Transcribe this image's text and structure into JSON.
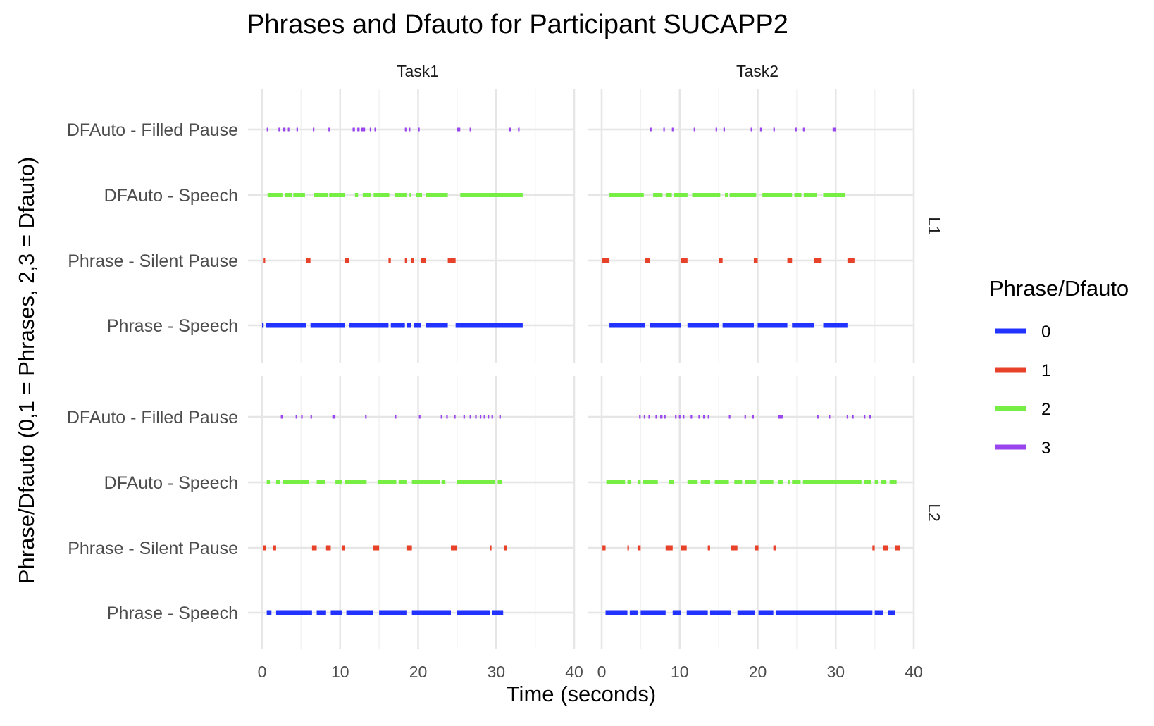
{
  "chart_data": {
    "type": "timeline",
    "title": "Phrases and Dfauto for Participant SUCAPP2",
    "xlabel": "Time (seconds)",
    "ylabel": "Phrase/Dfauto (0,1 = Phrases, 2,3 = Dfauto)",
    "xlim": [
      0,
      40
    ],
    "x_ticks": [
      "0",
      "10",
      "20",
      "30",
      "40"
    ],
    "categories": [
      "DFAuto - Filled Pause",
      "DFAuto - Speech",
      "Phrase - Silent Pause",
      "Phrase - Speech"
    ],
    "facet_cols": [
      "Task1",
      "Task2"
    ],
    "facet_rows": [
      "L1",
      "L2"
    ],
    "grid": true,
    "legend": {
      "title": "Phrase/Dfauto",
      "position": "right",
      "entries": [
        {
          "label": "0",
          "color": "#2233ff"
        },
        {
          "label": "1",
          "color": "#e8412a"
        },
        {
          "label": "2",
          "color": "#77ee44"
        },
        {
          "label": "3",
          "color": "#9944ee"
        }
      ]
    },
    "panels": [
      {
        "row": "L1",
        "col": "Task1",
        "series": [
          {
            "code": "3",
            "category": "DFAuto - Filled Pause",
            "segments": [
              [
                0.6,
                0.8
              ],
              [
                2.1,
                2.3
              ],
              [
                2.7,
                3.0
              ],
              [
                3.3,
                3.5
              ],
              [
                4.4,
                4.6
              ],
              [
                6.5,
                6.7
              ],
              [
                8.5,
                8.7
              ],
              [
                11.6,
                11.9
              ],
              [
                12.2,
                12.5
              ],
              [
                12.7,
                13.2
              ],
              [
                13.8,
                14.0
              ],
              [
                14.4,
                14.6
              ],
              [
                18.3,
                18.5
              ],
              [
                18.8,
                19.0
              ],
              [
                20.0,
                20.2
              ],
              [
                25.0,
                25.4
              ],
              [
                26.6,
                26.8
              ],
              [
                31.6,
                31.9
              ],
              [
                32.8,
                33.0
              ]
            ]
          },
          {
            "code": "2",
            "category": "DFAuto - Speech",
            "segments": [
              [
                0.7,
                2.6
              ],
              [
                2.9,
                3.8
              ],
              [
                4.0,
                5.5
              ],
              [
                6.6,
                8.4
              ],
              [
                8.6,
                10.6
              ],
              [
                11.9,
                12.3
              ],
              [
                12.9,
                14.0
              ],
              [
                14.3,
                16.3
              ],
              [
                17.0,
                18.5
              ],
              [
                18.9,
                19.1
              ],
              [
                19.7,
                20.5
              ],
              [
                21.0,
                23.8
              ],
              [
                25.4,
                33.4
              ]
            ]
          },
          {
            "code": "1",
            "category": "Phrase - Silent Pause",
            "segments": [
              [
                0.2,
                0.4
              ],
              [
                5.6,
                6.2
              ],
              [
                10.6,
                11.2
              ],
              [
                16.2,
                16.5
              ],
              [
                18.3,
                18.6
              ],
              [
                19.1,
                19.5
              ],
              [
                20.4,
                21.0
              ],
              [
                23.8,
                24.8
              ]
            ]
          },
          {
            "code": "0",
            "category": "Phrase - Speech",
            "segments": [
              [
                0.0,
                0.2
              ],
              [
                0.5,
                5.6
              ],
              [
                6.2,
                10.6
              ],
              [
                11.2,
                16.2
              ],
              [
                16.5,
                18.3
              ],
              [
                18.6,
                19.1
              ],
              [
                19.5,
                20.4
              ],
              [
                21.0,
                23.8
              ],
              [
                24.8,
                33.4
              ]
            ]
          }
        ]
      },
      {
        "row": "L1",
        "col": "Task2",
        "series": [
          {
            "code": "3",
            "category": "DFAuto - Filled Pause",
            "segments": [
              [
                6.2,
                6.4
              ],
              [
                7.9,
                8.1
              ],
              [
                9.0,
                9.2
              ],
              [
                11.8,
                12.0
              ],
              [
                14.6,
                14.8
              ],
              [
                15.6,
                15.8
              ],
              [
                19.1,
                19.3
              ],
              [
                20.3,
                20.5
              ],
              [
                22.0,
                22.2
              ],
              [
                24.8,
                25.0
              ],
              [
                25.8,
                26.0
              ],
              [
                29.6,
                30.0
              ]
            ]
          },
          {
            "code": "2",
            "category": "DFAuto - Speech",
            "segments": [
              [
                1.0,
                5.4
              ],
              [
                6.6,
                7.8
              ],
              [
                8.2,
                9.0
              ],
              [
                9.3,
                11.0
              ],
              [
                11.6,
                15.2
              ],
              [
                15.8,
                16.2
              ],
              [
                16.4,
                19.8
              ],
              [
                20.6,
                24.4
              ],
              [
                24.7,
                25.6
              ],
              [
                25.9,
                27.6
              ],
              [
                28.4,
                31.2
              ]
            ]
          },
          {
            "code": "1",
            "category": "Phrase - Silent Pause",
            "segments": [
              [
                0.0,
                1.0
              ],
              [
                5.6,
                6.2
              ],
              [
                10.2,
                11.0
              ],
              [
                15.0,
                15.5
              ],
              [
                19.5,
                20.0
              ],
              [
                23.8,
                24.4
              ],
              [
                27.2,
                28.2
              ],
              [
                31.5,
                32.4
              ]
            ]
          },
          {
            "code": "0",
            "category": "Phrase - Speech",
            "segments": [
              [
                1.0,
                5.6
              ],
              [
                6.2,
                10.2
              ],
              [
                11.0,
                15.0
              ],
              [
                15.5,
                19.5
              ],
              [
                20.0,
                23.8
              ],
              [
                24.4,
                27.2
              ],
              [
                28.4,
                31.5
              ]
            ]
          }
        ]
      },
      {
        "row": "L2",
        "col": "Task1",
        "series": [
          {
            "code": "3",
            "category": "DFAuto - Filled Pause",
            "segments": [
              [
                2.4,
                2.7
              ],
              [
                4.3,
                4.5
              ],
              [
                5.0,
                5.2
              ],
              [
                6.2,
                6.4
              ],
              [
                9.0,
                9.4
              ],
              [
                13.2,
                13.4
              ],
              [
                17.0,
                17.2
              ],
              [
                20.1,
                20.3
              ],
              [
                22.9,
                23.1
              ],
              [
                23.6,
                23.8
              ],
              [
                24.6,
                24.8
              ],
              [
                25.8,
                26.0
              ],
              [
                26.6,
                26.8
              ],
              [
                27.3,
                27.5
              ],
              [
                27.9,
                28.1
              ],
              [
                28.4,
                28.6
              ],
              [
                28.9,
                29.1
              ],
              [
                29.4,
                29.6
              ],
              [
                30.4,
                30.6
              ]
            ]
          },
          {
            "code": "2",
            "category": "DFAuto - Speech",
            "segments": [
              [
                0.6,
                1.0
              ],
              [
                1.8,
                2.3
              ],
              [
                2.7,
                6.0
              ],
              [
                7.0,
                8.1
              ],
              [
                9.4,
                10.2
              ],
              [
                10.6,
                13.4
              ],
              [
                14.8,
                17.2
              ],
              [
                17.5,
                18.5
              ],
              [
                19.2,
                22.8
              ],
              [
                23.0,
                23.5
              ],
              [
                25.0,
                29.9
              ],
              [
                30.2,
                30.7
              ]
            ]
          },
          {
            "code": "1",
            "category": "Phrase - Silent Pause",
            "segments": [
              [
                0.1,
                0.5
              ],
              [
                1.4,
                1.8
              ],
              [
                6.4,
                7.0
              ],
              [
                8.2,
                8.8
              ],
              [
                10.2,
                10.6
              ],
              [
                14.2,
                15.0
              ],
              [
                18.5,
                19.2
              ],
              [
                24.2,
                25.0
              ],
              [
                29.2,
                29.4
              ],
              [
                31.0,
                31.4
              ]
            ]
          },
          {
            "code": "0",
            "category": "Phrase - Speech",
            "segments": [
              [
                0.6,
                1.2
              ],
              [
                1.8,
                6.4
              ],
              [
                7.0,
                8.2
              ],
              [
                8.8,
                10.2
              ],
              [
                10.8,
                14.2
              ],
              [
                15.0,
                18.5
              ],
              [
                19.2,
                24.2
              ],
              [
                25.0,
                29.2
              ],
              [
                29.5,
                30.9
              ]
            ]
          }
        ]
      },
      {
        "row": "L2",
        "col": "Task2",
        "series": [
          {
            "code": "3",
            "category": "DFAuto - Filled Pause",
            "segments": [
              [
                4.8,
                5.0
              ],
              [
                5.4,
                5.6
              ],
              [
                6.0,
                6.2
              ],
              [
                6.9,
                7.1
              ],
              [
                7.5,
                7.8
              ],
              [
                8.0,
                8.2
              ],
              [
                9.4,
                9.6
              ],
              [
                9.9,
                10.1
              ],
              [
                10.4,
                10.6
              ],
              [
                11.4,
                11.6
              ],
              [
                12.4,
                12.6
              ],
              [
                13.0,
                13.2
              ],
              [
                13.6,
                13.8
              ],
              [
                16.3,
                16.5
              ],
              [
                18.3,
                18.5
              ],
              [
                19.3,
                19.5
              ],
              [
                22.6,
                23.2
              ],
              [
                27.6,
                27.8
              ],
              [
                29.1,
                29.3
              ],
              [
                31.4,
                31.6
              ],
              [
                32.1,
                32.3
              ],
              [
                33.6,
                33.8
              ],
              [
                34.3,
                34.5
              ]
            ]
          },
          {
            "code": "2",
            "category": "DFAuto - Speech",
            "segments": [
              [
                0.6,
                3.0
              ],
              [
                3.3,
                3.8
              ],
              [
                4.6,
                5.0
              ],
              [
                5.3,
                7.2
              ],
              [
                8.6,
                9.3
              ],
              [
                11.0,
                12.3
              ],
              [
                12.7,
                13.9
              ],
              [
                14.5,
                16.3
              ],
              [
                17.0,
                18.0
              ],
              [
                18.4,
                19.8
              ],
              [
                20.3,
                22.0
              ],
              [
                22.6,
                23.2
              ],
              [
                23.9,
                24.1
              ],
              [
                24.4,
                25.5
              ],
              [
                25.8,
                33.3
              ],
              [
                33.6,
                34.5
              ],
              [
                35.0,
                35.4
              ],
              [
                35.8,
                36.5
              ],
              [
                36.9,
                37.8
              ]
            ]
          },
          {
            "code": "1",
            "category": "Phrase - Silent Pause",
            "segments": [
              [
                0.1,
                0.5
              ],
              [
                3.3,
                3.5
              ],
              [
                4.6,
                5.0
              ],
              [
                8.2,
                9.1
              ],
              [
                10.2,
                10.9
              ],
              [
                13.6,
                13.9
              ],
              [
                16.6,
                17.4
              ],
              [
                19.6,
                20.1
              ],
              [
                22.0,
                22.3
              ],
              [
                34.7,
                35.0
              ],
              [
                36.1,
                36.7
              ],
              [
                37.6,
                38.2
              ]
            ]
          },
          {
            "code": "0",
            "category": "Phrase - Speech",
            "segments": [
              [
                0.5,
                3.3
              ],
              [
                3.6,
                4.6
              ],
              [
                5.0,
                8.2
              ],
              [
                9.1,
                10.2
              ],
              [
                10.9,
                13.6
              ],
              [
                13.9,
                16.6
              ],
              [
                17.4,
                19.6
              ],
              [
                20.1,
                22.0
              ],
              [
                22.3,
                34.7
              ],
              [
                35.0,
                36.1
              ],
              [
                36.7,
                37.6
              ]
            ]
          }
        ]
      }
    ]
  }
}
